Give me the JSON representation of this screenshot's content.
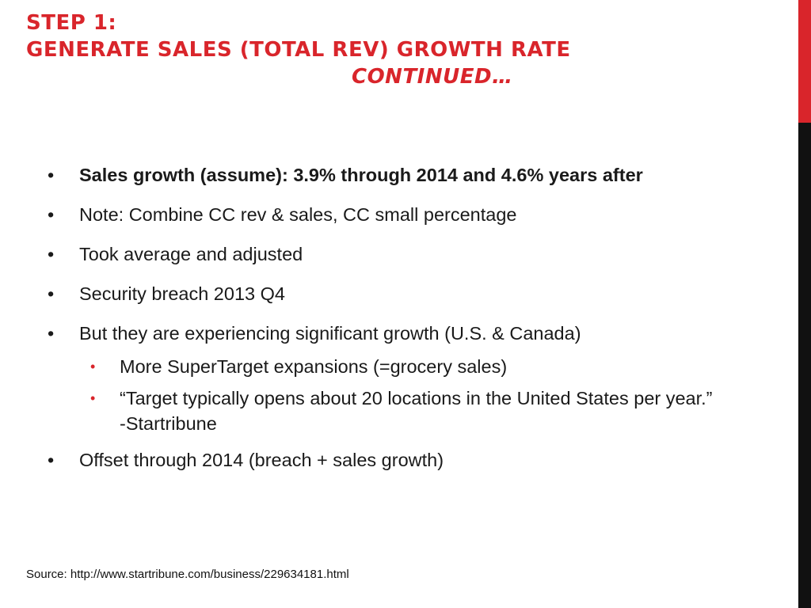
{
  "title": {
    "line1": "Step 1:",
    "line2": "Generate Sales (Total Rev) Growth Rate",
    "line3": "continued…"
  },
  "bullets": [
    {
      "marker": "•",
      "text": "Sales growth (assume): 3.9% through 2014 and 4.6% years after"
    },
    {
      "marker": "•",
      "text": "Note: Combine CC rev & sales, CC small percentage"
    },
    {
      "marker": "•",
      "text": "Took average and adjusted"
    },
    {
      "marker": "•",
      "text": "Security breach 2013 Q4"
    },
    {
      "marker": "•",
      "text": "But they are experiencing significant growth (U.S. & Canada)"
    }
  ],
  "sub_bullets": [
    {
      "marker": "•",
      "text": "More SuperTarget expansions (=grocery sales)"
    },
    {
      "marker": "•",
      "text": " “Target typically opens about 20 locations in the United States per year.” -Startribune"
    }
  ],
  "last_bullet": {
    "marker": "•",
    "text": " Offset through 2014 (breach + sales growth)"
  },
  "source": "Source: http://www.startribune.com/business/229634181.html",
  "colors": {
    "accent": "#d9252b",
    "dark_bar": "#111111",
    "text": "#1a1a1a"
  }
}
